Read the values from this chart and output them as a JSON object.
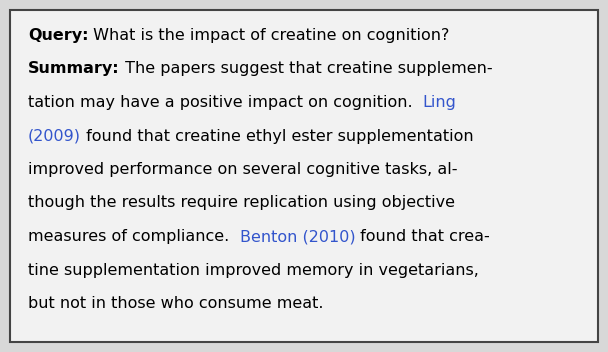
{
  "bg_color": "#d8d8d8",
  "box_facecolor": "#f2f2f2",
  "border_color": "#444444",
  "text_color": "#000000",
  "link_color": "#3355cc",
  "figsize": [
    6.08,
    3.52
  ],
  "dpi": 100,
  "font_size": 11.5,
  "lines": [
    [
      {
        "text": "Query:",
        "color": "#000000",
        "bold": true
      },
      {
        "text": " What is the impact of creatine on cognition?",
        "color": "#000000",
        "bold": false
      }
    ],
    [
      {
        "text": "Summary:",
        "color": "#000000",
        "bold": true
      },
      {
        "text": " The papers suggest that creatine supplemen-",
        "color": "#000000",
        "bold": false
      }
    ],
    [
      {
        "text": "tation may have a positive impact on cognition.  ",
        "color": "#000000",
        "bold": false
      },
      {
        "text": "Ling",
        "color": "#3355cc",
        "bold": false
      }
    ],
    [
      {
        "text": "(2009)",
        "color": "#3355cc",
        "bold": false
      },
      {
        "text": " found that creatine ethyl ester supplementation",
        "color": "#000000",
        "bold": false
      }
    ],
    [
      {
        "text": "improved performance on several cognitive tasks, al-",
        "color": "#000000",
        "bold": false
      }
    ],
    [
      {
        "text": "though the results require replication using objective",
        "color": "#000000",
        "bold": false
      }
    ],
    [
      {
        "text": "measures of compliance.  ",
        "color": "#000000",
        "bold": false
      },
      {
        "text": "Benton (2010)",
        "color": "#3355cc",
        "bold": false
      },
      {
        "text": " found that crea-",
        "color": "#000000",
        "bold": false
      }
    ],
    [
      {
        "text": "tine supplementation improved memory in vegetarians,",
        "color": "#000000",
        "bold": false
      }
    ],
    [
      {
        "text": "but not in those who consume meat.",
        "color": "#000000",
        "bold": false
      }
    ]
  ]
}
